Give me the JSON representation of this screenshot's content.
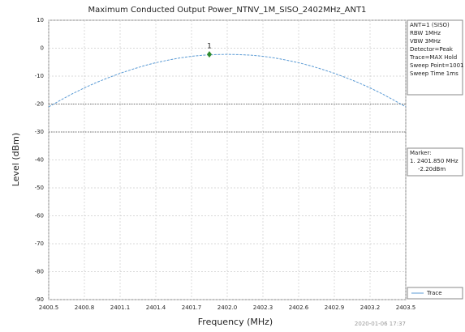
{
  "chart_data": {
    "type": "line",
    "title": "Maximum Conducted Output Power_NTNV_1M_SISO_2402MHz_ANT1",
    "x_label": "Frequency (MHz)",
    "y_label": "Level (dBm)",
    "x": [
      2400.5,
      2400.6,
      2400.7,
      2400.8,
      2400.9,
      2401.0,
      2401.1,
      2401.2,
      2401.3,
      2401.4,
      2401.5,
      2401.6,
      2401.7,
      2401.8,
      2401.9,
      2402.0,
      2402.1,
      2402.2,
      2402.3,
      2402.4,
      2402.5,
      2402.6,
      2402.7,
      2402.8,
      2402.9,
      2403.0,
      2403.1,
      2403.2,
      2403.3,
      2403.4,
      2403.5
    ],
    "series": [
      {
        "name": "Trace",
        "color": "#5b9bd5",
        "values": [
          -21.0,
          -18.6,
          -16.3,
          -14.2,
          -12.3,
          -10.6,
          -9.0,
          -7.6,
          -6.3,
          -5.2,
          -4.3,
          -3.5,
          -2.9,
          -2.5,
          -2.3,
          -2.2,
          -2.3,
          -2.5,
          -2.9,
          -3.5,
          -4.3,
          -5.2,
          -6.3,
          -7.6,
          -9.0,
          -10.6,
          -12.3,
          -14.2,
          -16.3,
          -18.6,
          -21.0
        ]
      }
    ],
    "xlim": [
      2400.5,
      2403.5
    ],
    "xticks": [
      2400.5,
      2400.8,
      2401.1,
      2401.4,
      2401.7,
      {
        "value": 2402,
        "label": "2402.0"
      },
      2402.3,
      2402.6,
      2402.9,
      2403.2,
      2403.5
    ],
    "ylim": [
      -90,
      10
    ],
    "yticks": [
      10,
      0,
      -10,
      -20,
      -30,
      -40,
      -50,
      -60,
      -70,
      -80,
      -90
    ],
    "grid": true,
    "limit_lines": [
      -20,
      -30
    ],
    "marker": {
      "label": "1",
      "x": 2401.85,
      "y": -2.2,
      "color": "#2e8b2e"
    },
    "marker_text": [
      "Marker:",
      "1. 2401.850 MHz",
      "-2.20dBm"
    ],
    "info": [
      "ANT=1 (SISO)",
      "RBW 1MHz",
      "VBW 3MHz",
      "Detector=Peak",
      "Trace=MAX Hold",
      "Sweep Point=1001",
      "Sweep Time 1ms"
    ],
    "timestamp": "2020-01-06 17:37"
  }
}
